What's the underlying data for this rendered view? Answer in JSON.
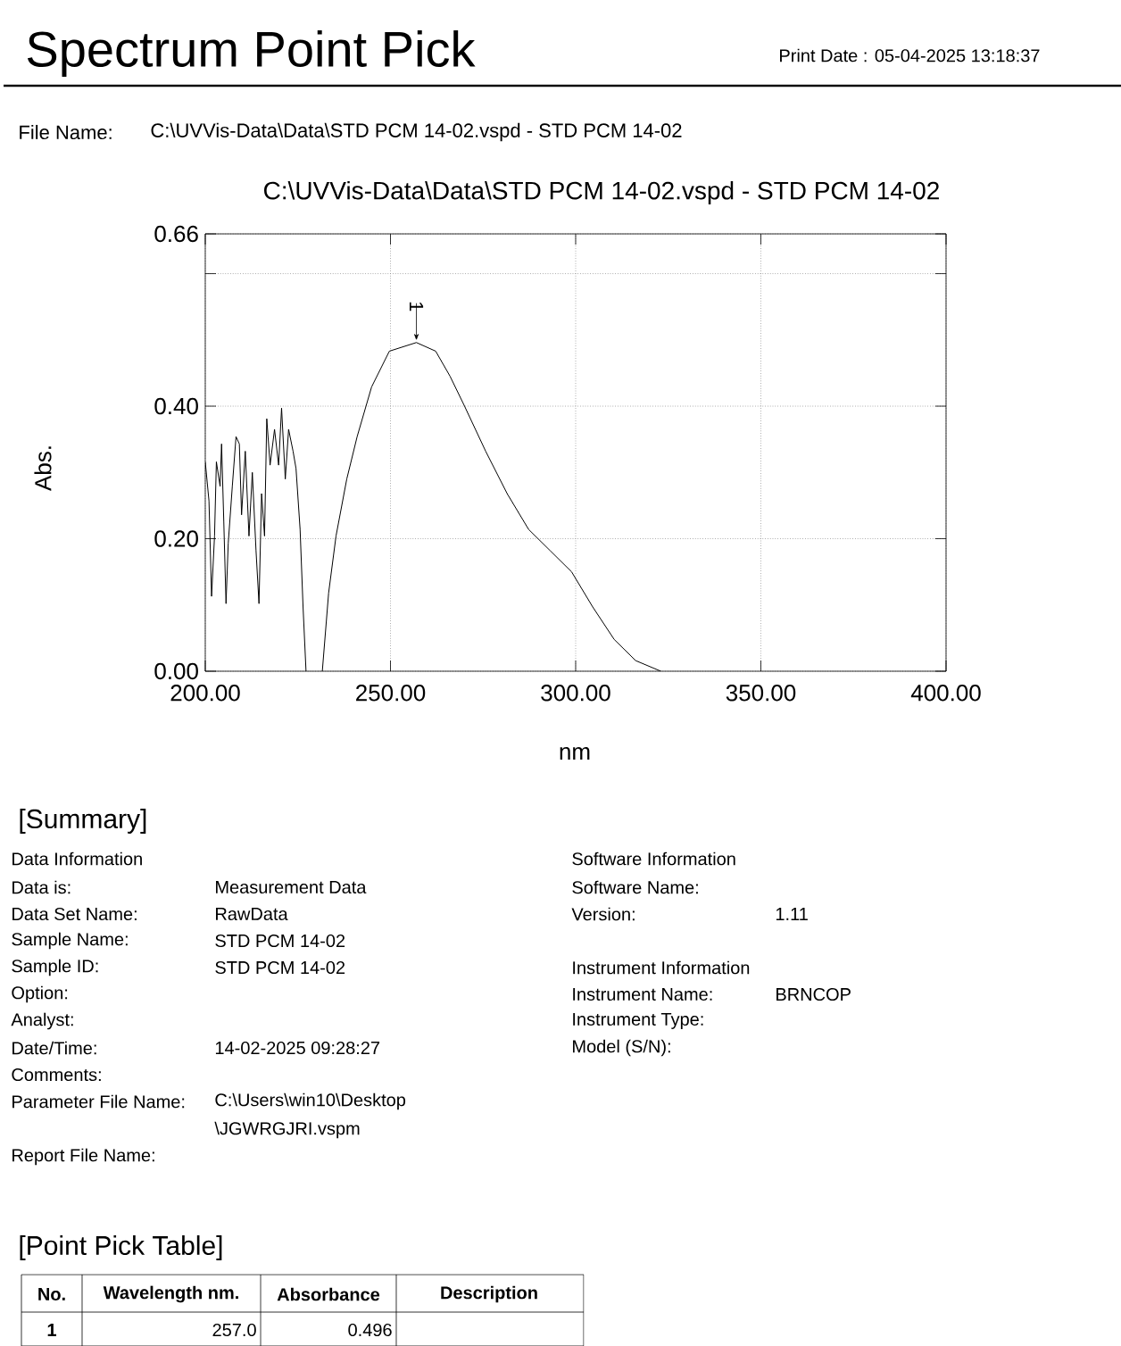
{
  "chart_data": {
    "type": "line",
    "title": "Spectrum Point Pick",
    "subtitle": "C:\\UVVis-Data\\Data\\STD PCM 14-02.vspd - STD PCM 14-02",
    "xlabel": "nm",
    "ylabel": "Abs.",
    "xlim": [
      200,
      400
    ],
    "ylim": [
      0,
      0.66
    ],
    "xticks": [
      {
        "value": 200,
        "label": "200.00"
      },
      {
        "value": 250,
        "label": "250.00"
      },
      {
        "value": 300,
        "label": "300.00"
      },
      {
        "value": 350,
        "label": "350.00"
      },
      {
        "value": 400,
        "label": "400.00"
      }
    ],
    "yticks": [
      {
        "value": 0,
        "label": "0.00"
      },
      {
        "value": 0.2,
        "label": "0.20"
      },
      {
        "value": 0.4,
        "label": "0.40"
      },
      {
        "value": 0.6,
        "label": null
      },
      {
        "value": 0.66,
        "label": "0.66"
      }
    ],
    "grid": true,
    "marker": "none",
    "line_style": "solid",
    "series": [
      {
        "color": "#000000",
        "x": [
          200,
          201,
          201.7,
          202.5,
          203,
          204,
          204.4,
          205,
          205.6,
          206.2,
          207.3,
          208.3,
          209.2,
          209.8,
          210.8,
          211.8,
          212.7,
          213.7,
          214.5,
          215.2,
          216,
          216.6,
          217.5,
          218.7,
          219.8,
          220.6,
          221.6,
          222.5,
          223.7,
          224.5,
          225.6,
          226.4,
          227.2,
          229.4,
          231.6,
          233.3,
          235.3,
          238.2,
          241,
          244.9,
          249.7,
          257,
          262.2,
          266.1,
          270,
          275.7,
          281.5,
          287.3,
          293.1,
          298.9,
          304.6,
          310.4,
          316.2,
          323
        ],
        "values": [
          0.316,
          0.257,
          0.113,
          0.204,
          0.316,
          0.279,
          0.343,
          0.225,
          0.102,
          0.193,
          0.279,
          0.354,
          0.343,
          0.236,
          0.332,
          0.204,
          0.3,
          0.182,
          0.102,
          0.268,
          0.204,
          0.381,
          0.311,
          0.365,
          0.311,
          0.397,
          0.29,
          0.365,
          0.332,
          0.306,
          0.214,
          0.097,
          0,
          null,
          0,
          0.118,
          0.204,
          0.29,
          0.354,
          0.429,
          0.483,
          0.496,
          0.483,
          0.445,
          0.4,
          0.332,
          0.268,
          0.214,
          0.182,
          0.15,
          0.097,
          0.048,
          0.016,
          0
        ]
      }
    ],
    "annotations": [
      "Print Date :  05-04-2025   13:18:37",
      "File Name:",
      "C:\\UVVis-Data\\Data\\STD PCM 14-02.vspd - STD PCM 14-02",
      "[Summary]",
      "Data Information",
      "Data is:",
      "Measurement Data",
      "Data Set Name:",
      "RawData",
      "Sample Name:",
      "STD PCM 14-02",
      "Sample ID:",
      "STD PCM 14-02",
      "Option:",
      "Analyst:",
      "Date/Time:",
      "14-02-2025 09:28:27",
      "Comments:",
      "Parameter File Name:",
      "C:\\Users\\win10\\Desktop",
      "\\JGWRGJRI.vspm",
      "Report File Name:",
      "Software Information",
      "Software Name:",
      "Version:",
      "1.11",
      "Instrument Information",
      "Instrument Name:",
      "BRNCOP",
      "Instrument Type:",
      "Model (S/N):",
      "[Point Pick Table]",
      "No.",
      "Wavelength nm.",
      "Absorbance",
      "Description",
      "1",
      "257.0",
      "0.496",
      {
        "text": "1",
        "x": 257,
        "y": 0.496
      }
    ]
  }
}
